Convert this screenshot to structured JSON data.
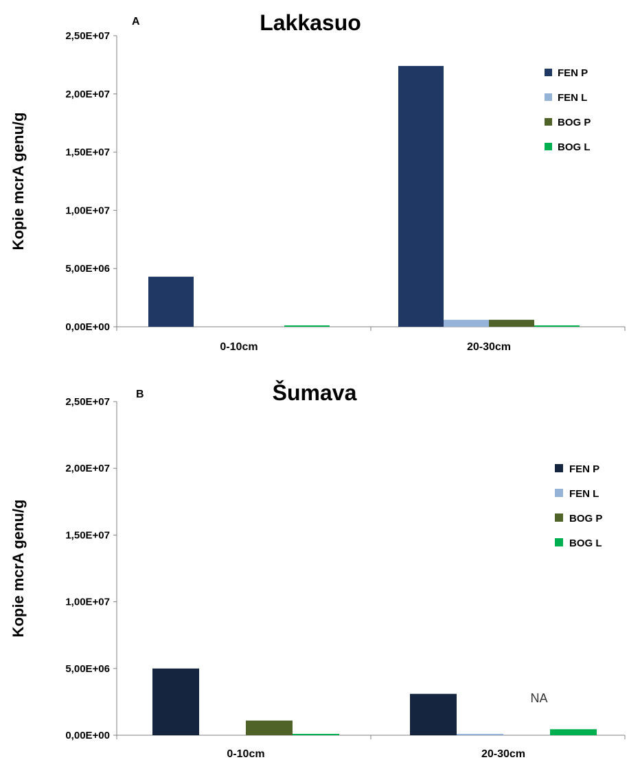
{
  "chart_data": [
    {
      "type": "bar",
      "panel_letter": "A",
      "title": "Lakkasuo",
      "ylabel": "Kopie mcrA genu/g",
      "xlabel": "",
      "categories": [
        "0-10cm",
        "20-30cm"
      ],
      "ylim": [
        0,
        25000000
      ],
      "yticks": [
        0,
        5000000,
        10000000,
        15000000,
        20000000,
        25000000
      ],
      "ytick_labels": [
        "0,00E+00",
        "5,00E+06",
        "1,00E+07",
        "1,50E+07",
        "2,00E+07",
        "2,50E+07"
      ],
      "grid": false,
      "legend_position": "right",
      "series": [
        {
          "name": "FEN P",
          "color": "#1f3864",
          "values": [
            4300000,
            22400000
          ]
        },
        {
          "name": "FEN L",
          "color": "#95b3d7",
          "values": [
            0,
            600000
          ]
        },
        {
          "name": "BOG P",
          "color": "#4f6228",
          "values": [
            0,
            600000
          ]
        },
        {
          "name": "BOG L",
          "color": "#00b050",
          "values": [
            100000,
            100000
          ]
        }
      ],
      "annotations": []
    },
    {
      "type": "bar",
      "panel_letter": "B",
      "title": "Šumava",
      "ylabel": "Kopie mcrA genu/g",
      "xlabel": "",
      "categories": [
        "0-10cm",
        "20-30cm"
      ],
      "ylim": [
        0,
        25000000
      ],
      "yticks": [
        0,
        5000000,
        10000000,
        15000000,
        20000000,
        25000000
      ],
      "ytick_labels": [
        "0,00E+00",
        "5,00E+06",
        "1,00E+07",
        "1,50E+07",
        "2,00E+07",
        "2,50E+07"
      ],
      "grid": false,
      "legend_position": "right",
      "series": [
        {
          "name": "FEN P",
          "color": "#15243f",
          "values": [
            5000000,
            3100000
          ]
        },
        {
          "name": "FEN L",
          "color": "#95b3d7",
          "values": [
            0,
            100000
          ]
        },
        {
          "name": "BOG P",
          "color": "#4f6228",
          "values": [
            1100000,
            null
          ]
        },
        {
          "name": "BOG L",
          "color": "#00b050",
          "values": [
            100000,
            450000
          ]
        }
      ],
      "annotations": [
        {
          "text": "NA",
          "category_index": 1,
          "series_index": 2
        }
      ]
    }
  ]
}
